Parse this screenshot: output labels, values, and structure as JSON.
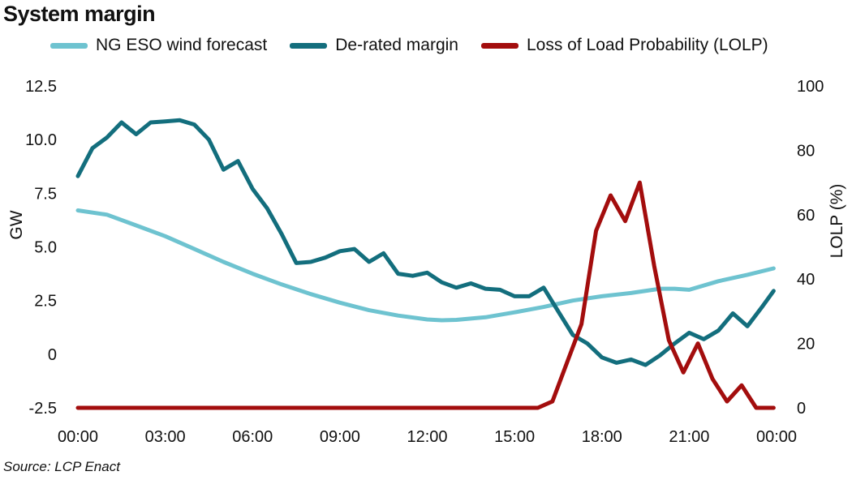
{
  "title": "System margin",
  "source": "Source: LCP Enact",
  "legend": [
    {
      "name": "NG ESO wind forecast",
      "color": "#6ec3d0"
    },
    {
      "name": "De-rated margin",
      "color": "#136e7d"
    },
    {
      "name": "Loss of Load Probability (LOLP)",
      "color": "#a30d0d"
    }
  ],
  "chart_data": {
    "type": "line",
    "title": "System margin",
    "ylabel": "GW",
    "y2label": "LOLP (%)",
    "ylim": [
      -2.5,
      12.5
    ],
    "y2lim": [
      0,
      100
    ],
    "yticks": [
      -2.5,
      0,
      2.5,
      5.0,
      7.5,
      10.0,
      12.5
    ],
    "ytick_labels": [
      "-2.5",
      "0",
      "2.5",
      "5.0",
      "7.5",
      "10.0",
      "12.5"
    ],
    "y2ticks": [
      0,
      20,
      40,
      60,
      80,
      100
    ],
    "y2tick_labels": [
      "0",
      "20",
      "40",
      "60",
      "80",
      "100"
    ],
    "xlim": [
      0,
      24
    ],
    "xticks": [
      0,
      3,
      6,
      9,
      12,
      15,
      18,
      21,
      24
    ],
    "xtick_labels": [
      "00:00",
      "03:00",
      "06:00",
      "09:00",
      "12:00",
      "15:00",
      "18:00",
      "21:00",
      "00:00"
    ],
    "grid": false,
    "series": [
      {
        "name": "NG ESO wind forecast",
        "axis": "left",
        "color": "#6ec3d0",
        "x": [
          0,
          1,
          2,
          3,
          4,
          5,
          6,
          7,
          8,
          9,
          10,
          11,
          12,
          12.5,
          13,
          14,
          15,
          16,
          17,
          18,
          19,
          20,
          20.5,
          21,
          22,
          23,
          23.9
        ],
        "y": [
          6.7,
          6.5,
          6.0,
          5.5,
          4.9,
          4.3,
          3.75,
          3.25,
          2.8,
          2.4,
          2.05,
          1.8,
          1.62,
          1.58,
          1.6,
          1.72,
          1.95,
          2.2,
          2.5,
          2.7,
          2.85,
          3.05,
          3.05,
          3.0,
          3.4,
          3.7,
          4.0
        ]
      },
      {
        "name": "De-rated margin",
        "axis": "left",
        "color": "#136e7d",
        "x": [
          0,
          0.5,
          1,
          1.5,
          2,
          2.5,
          3,
          3.5,
          4,
          4.5,
          5,
          5.5,
          6,
          6.5,
          7,
          7.5,
          8,
          8.5,
          9,
          9.5,
          10,
          10.5,
          11,
          11.5,
          12,
          12.5,
          13,
          13.5,
          14,
          14.5,
          15,
          15.5,
          16,
          16.5,
          17,
          17.5,
          18,
          18.5,
          19,
          19.5,
          20,
          20.5,
          21,
          21.5,
          22,
          22.5,
          23,
          23.5,
          23.9
        ],
        "y": [
          8.3,
          9.6,
          10.1,
          10.8,
          10.25,
          10.8,
          10.85,
          10.9,
          10.7,
          10.0,
          8.6,
          9.0,
          7.7,
          6.8,
          5.6,
          4.25,
          4.3,
          4.5,
          4.8,
          4.9,
          4.3,
          4.7,
          3.75,
          3.65,
          3.8,
          3.35,
          3.1,
          3.3,
          3.05,
          3.0,
          2.7,
          2.7,
          3.1,
          2.0,
          0.9,
          0.5,
          -0.15,
          -0.4,
          -0.25,
          -0.5,
          -0.05,
          0.5,
          1.0,
          0.7,
          1.1,
          1.9,
          1.3,
          2.2,
          2.95
        ]
      },
      {
        "name": "Loss of Load Probability (LOLP)",
        "axis": "right",
        "color": "#a30d0d",
        "x": [
          0,
          1,
          2,
          3,
          4,
          5,
          6,
          7,
          8,
          9,
          10,
          11,
          12,
          13,
          14,
          15,
          15.8,
          16.3,
          16.8,
          17.3,
          17.8,
          18.3,
          18.8,
          19.3,
          19.8,
          20.3,
          20.8,
          21.3,
          21.8,
          22.3,
          22.8,
          23.3,
          23.9
        ],
        "y": [
          0,
          0,
          0,
          0,
          0,
          0,
          0,
          0,
          0,
          0,
          0,
          0,
          0,
          0,
          0,
          0,
          0,
          2,
          14,
          26,
          55,
          66,
          58,
          70,
          44,
          21,
          11,
          20,
          9,
          2,
          7,
          0,
          0
        ]
      }
    ]
  }
}
